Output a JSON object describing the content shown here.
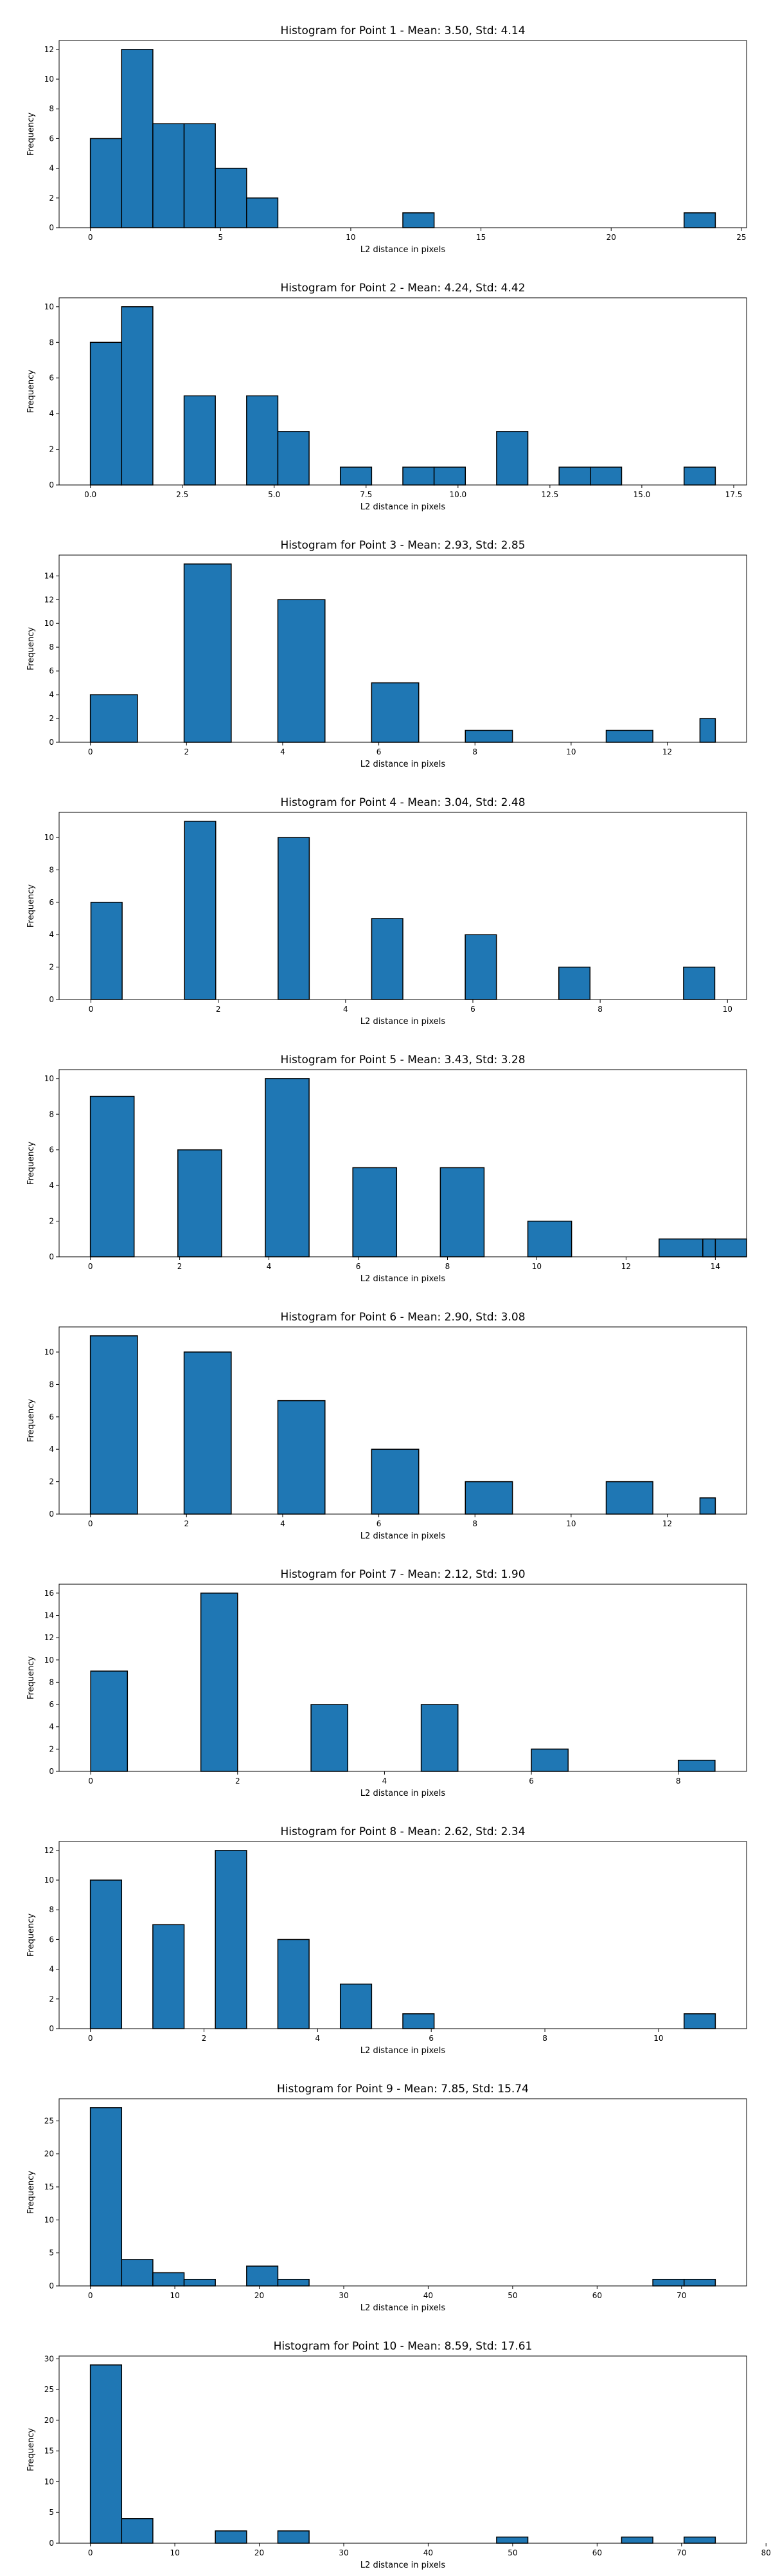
{
  "colors": {
    "bar_fill": "#1f77b4",
    "bar_edge": "#000000",
    "axes": "#000000",
    "background": "#ffffff"
  },
  "chart_data": [
    {
      "type": "bar",
      "title": "Histogram for Point 1 - Mean: 3.50, Std: 4.14",
      "xlabel": "L2 distance in pixels",
      "ylabel": "Frequency",
      "xlim": [
        -1.2,
        25.2
      ],
      "ylim": [
        0,
        12.6
      ],
      "xticks": [
        0,
        5,
        10,
        15,
        20,
        25
      ],
      "xtick_labels": [
        "0",
        "5",
        "10",
        "15",
        "20",
        "25"
      ],
      "yticks": [
        0,
        2,
        4,
        6,
        8,
        10,
        12
      ],
      "bins": [
        [
          0,
          1.2,
          6
        ],
        [
          1.2,
          2.4,
          12
        ],
        [
          2.4,
          3.6,
          7
        ],
        [
          3.6,
          4.8,
          7
        ],
        [
          4.8,
          6.0,
          4
        ],
        [
          6.0,
          7.2,
          2
        ],
        [
          12.0,
          13.2,
          1
        ],
        [
          22.8,
          24.0,
          1
        ]
      ]
    },
    {
      "type": "bar",
      "title": "Histogram for Point 2 - Mean: 4.24, Std: 4.42",
      "xlabel": "L2 distance in pixels",
      "ylabel": "Frequency",
      "xlim": [
        -0.85,
        17.85
      ],
      "ylim": [
        0,
        10.5
      ],
      "xticks": [
        0,
        2.5,
        5,
        7.5,
        10,
        12.5,
        15,
        17.5
      ],
      "xtick_labels": [
        "0.0",
        "2.5",
        "5.0",
        "7.5",
        "10.0",
        "12.5",
        "15.0",
        "17.5"
      ],
      "yticks": [
        0,
        2,
        4,
        6,
        8,
        10
      ],
      "bins": [
        [
          0,
          0.85,
          8
        ],
        [
          0.85,
          1.7,
          10
        ],
        [
          2.55,
          3.4,
          5
        ],
        [
          4.25,
          5.1,
          5
        ],
        [
          5.1,
          5.95,
          3
        ],
        [
          6.8,
          7.65,
          1
        ],
        [
          8.5,
          9.35,
          1
        ],
        [
          9.35,
          10.2,
          1
        ],
        [
          11.05,
          11.9,
          3
        ],
        [
          12.75,
          13.6,
          1
        ],
        [
          13.6,
          14.45,
          1
        ],
        [
          16.15,
          17.0,
          1
        ]
      ]
    },
    {
      "type": "bar",
      "title": "Histogram for Point 3 - Mean: 2.93, Std: 2.85",
      "xlabel": "L2 distance in pixels",
      "ylabel": "Frequency",
      "xlim": [
        -0.65,
        13.65
      ],
      "ylim": [
        0,
        15.75
      ],
      "xticks": [
        0,
        2,
        4,
        6,
        8,
        10,
        12
      ],
      "xtick_labels": [
        "0",
        "2",
        "4",
        "6",
        "8",
        "10",
        "12"
      ],
      "yticks": [
        0,
        2,
        4,
        6,
        8,
        10,
        12,
        14
      ],
      "bins": [
        [
          0,
          0.98,
          4
        ],
        [
          1.95,
          2.93,
          15
        ],
        [
          3.9,
          4.88,
          12
        ],
        [
          5.85,
          6.83,
          5
        ],
        [
          7.8,
          8.78,
          1
        ],
        [
          10.73,
          11.7,
          1
        ],
        [
          12.68,
          13.0,
          2
        ]
      ]
    },
    {
      "type": "bar",
      "title": "Histogram for Point 4 - Mean: 3.04, Std: 2.48",
      "xlabel": "L2 distance in pixels",
      "ylabel": "Frequency",
      "xlim": [
        -0.5,
        10.3
      ],
      "ylim": [
        0,
        11.55
      ],
      "xticks": [
        0,
        2,
        4,
        6,
        8,
        10
      ],
      "xtick_labels": [
        "0",
        "2",
        "4",
        "6",
        "8",
        "10"
      ],
      "yticks": [
        0,
        2,
        4,
        6,
        8,
        10
      ],
      "bins": [
        [
          0,
          0.49,
          6
        ],
        [
          1.47,
          1.96,
          11
        ],
        [
          2.94,
          3.43,
          10
        ],
        [
          4.41,
          4.9,
          5
        ],
        [
          5.88,
          6.37,
          4
        ],
        [
          7.35,
          7.84,
          2
        ],
        [
          9.31,
          9.8,
          2
        ]
      ]
    },
    {
      "type": "bar",
      "title": "Histogram for Point 5 - Mean: 3.43, Std: 3.28",
      "xlabel": "L2 distance in pixels",
      "ylabel": "Frequency",
      "xlim": [
        -0.7,
        14.7
      ],
      "ylim": [
        0,
        10.5
      ],
      "xticks": [
        0,
        2,
        4,
        6,
        8,
        10,
        12,
        14
      ],
      "xtick_labels": [
        "0",
        "2",
        "4",
        "6",
        "8",
        "10",
        "12",
        "14"
      ],
      "yticks": [
        0,
        2,
        4,
        6,
        8,
        10
      ],
      "bins": [
        [
          0,
          0.98,
          9
        ],
        [
          1.96,
          2.94,
          6
        ],
        [
          3.92,
          4.9,
          10
        ],
        [
          5.88,
          6.86,
          5
        ],
        [
          7.84,
          8.82,
          5
        ],
        [
          9.8,
          10.78,
          2
        ],
        [
          13.72,
          14.7,
          1
        ],
        [
          12.74,
          13.72,
          1
        ],
        [
          13.72,
          14.0,
          1
        ]
      ]
    },
    {
      "type": "bar",
      "title": "Histogram for Point 6 - Mean: 2.90, Std: 3.08",
      "xlabel": "L2 distance in pixels",
      "ylabel": "Frequency",
      "xlim": [
        -0.65,
        13.65
      ],
      "ylim": [
        0,
        11.55
      ],
      "xticks": [
        0,
        2,
        4,
        6,
        8,
        10,
        12
      ],
      "xtick_labels": [
        "0",
        "2",
        "4",
        "6",
        "8",
        "10",
        "12"
      ],
      "yticks": [
        0,
        2,
        4,
        6,
        8,
        10
      ],
      "bins": [
        [
          0,
          0.98,
          11
        ],
        [
          1.95,
          2.93,
          10
        ],
        [
          3.9,
          4.88,
          7
        ],
        [
          5.85,
          6.83,
          4
        ],
        [
          7.8,
          8.78,
          2
        ],
        [
          10.73,
          11.7,
          2
        ],
        [
          12.68,
          13.0,
          1
        ]
      ]
    },
    {
      "type": "bar",
      "title": "Histogram for Point 7 - Mean: 2.12, Std: 1.90",
      "xlabel": "L2 distance in pixels",
      "ylabel": "Frequency",
      "xlim": [
        -0.43,
        8.93
      ],
      "ylim": [
        0,
        16.8
      ],
      "xticks": [
        0,
        2,
        4,
        6,
        8
      ],
      "xtick_labels": [
        "0",
        "2",
        "4",
        "6",
        "8"
      ],
      "yticks": [
        0,
        2,
        4,
        6,
        8,
        10,
        12,
        14,
        16
      ],
      "bins": [
        [
          0,
          0.5,
          9
        ],
        [
          1.5,
          2.0,
          16
        ],
        [
          3.0,
          3.5,
          6
        ],
        [
          4.5,
          5.0,
          6
        ],
        [
          6.0,
          6.5,
          2
        ],
        [
          8.0,
          8.5,
          1
        ]
      ]
    },
    {
      "type": "bar",
      "title": "Histogram for Point 8 - Mean: 2.62, Std: 2.34",
      "xlabel": "L2 distance in pixels",
      "ylabel": "Frequency",
      "xlim": [
        -0.55,
        11.55
      ],
      "ylim": [
        0,
        12.6
      ],
      "xticks": [
        0,
        2,
        4,
        6,
        8,
        10
      ],
      "xtick_labels": [
        "0",
        "2",
        "4",
        "6",
        "8",
        "10"
      ],
      "yticks": [
        0,
        2,
        4,
        6,
        8,
        10,
        12
      ],
      "bins": [
        [
          0,
          0.55,
          10
        ],
        [
          1.1,
          1.65,
          7
        ],
        [
          2.2,
          2.75,
          12
        ],
        [
          3.3,
          3.85,
          6
        ],
        [
          4.4,
          4.95,
          3
        ],
        [
          5.5,
          6.05,
          1
        ],
        [
          10.45,
          11.0,
          1
        ]
      ]
    },
    {
      "type": "bar",
      "title": "Histogram for Point 9 - Mean: 7.85, Std: 15.74",
      "xlabel": "L2 distance in pixels",
      "ylabel": "Frequency",
      "xlim": [
        -3.7,
        77.7
      ],
      "ylim": [
        0,
        28.35
      ],
      "xticks": [
        0,
        10,
        20,
        30,
        40,
        50,
        60,
        70
      ],
      "xtick_labels": [
        "0",
        "10",
        "20",
        "30",
        "40",
        "50",
        "60",
        "70"
      ],
      "yticks": [
        0,
        5,
        10,
        15,
        20,
        25
      ],
      "bins": [
        [
          0,
          3.7,
          27
        ],
        [
          3.7,
          7.4,
          4
        ],
        [
          7.4,
          11.1,
          2
        ],
        [
          11.1,
          14.8,
          1
        ],
        [
          18.5,
          22.2,
          3
        ],
        [
          22.2,
          25.9,
          1
        ],
        [
          66.6,
          70.3,
          1
        ],
        [
          70.3,
          74.0,
          1
        ]
      ]
    },
    {
      "type": "bar",
      "title": "Histogram for Point 10 - Mean: 8.59, Std: 17.61",
      "xlabel": "L2 distance in pixels",
      "ylabel": "Frequency",
      "xlim": [
        -3.7,
        77.7
      ],
      "ylim": [
        0,
        30.45
      ],
      "xticks": [
        0,
        10,
        20,
        30,
        40,
        50,
        60,
        70,
        80
      ],
      "xtick_labels": [
        "0",
        "10",
        "20",
        "30",
        "40",
        "50",
        "60",
        "70",
        "80"
      ],
      "yticks": [
        0,
        5,
        10,
        15,
        20,
        25,
        30
      ],
      "bins": [
        [
          0,
          3.7,
          29
        ],
        [
          3.7,
          7.4,
          4
        ],
        [
          14.8,
          18.5,
          2
        ],
        [
          22.2,
          25.9,
          2
        ],
        [
          48.1,
          51.8,
          1
        ],
        [
          62.9,
          66.6,
          1
        ],
        [
          70.3,
          74.0,
          1
        ]
      ]
    }
  ]
}
